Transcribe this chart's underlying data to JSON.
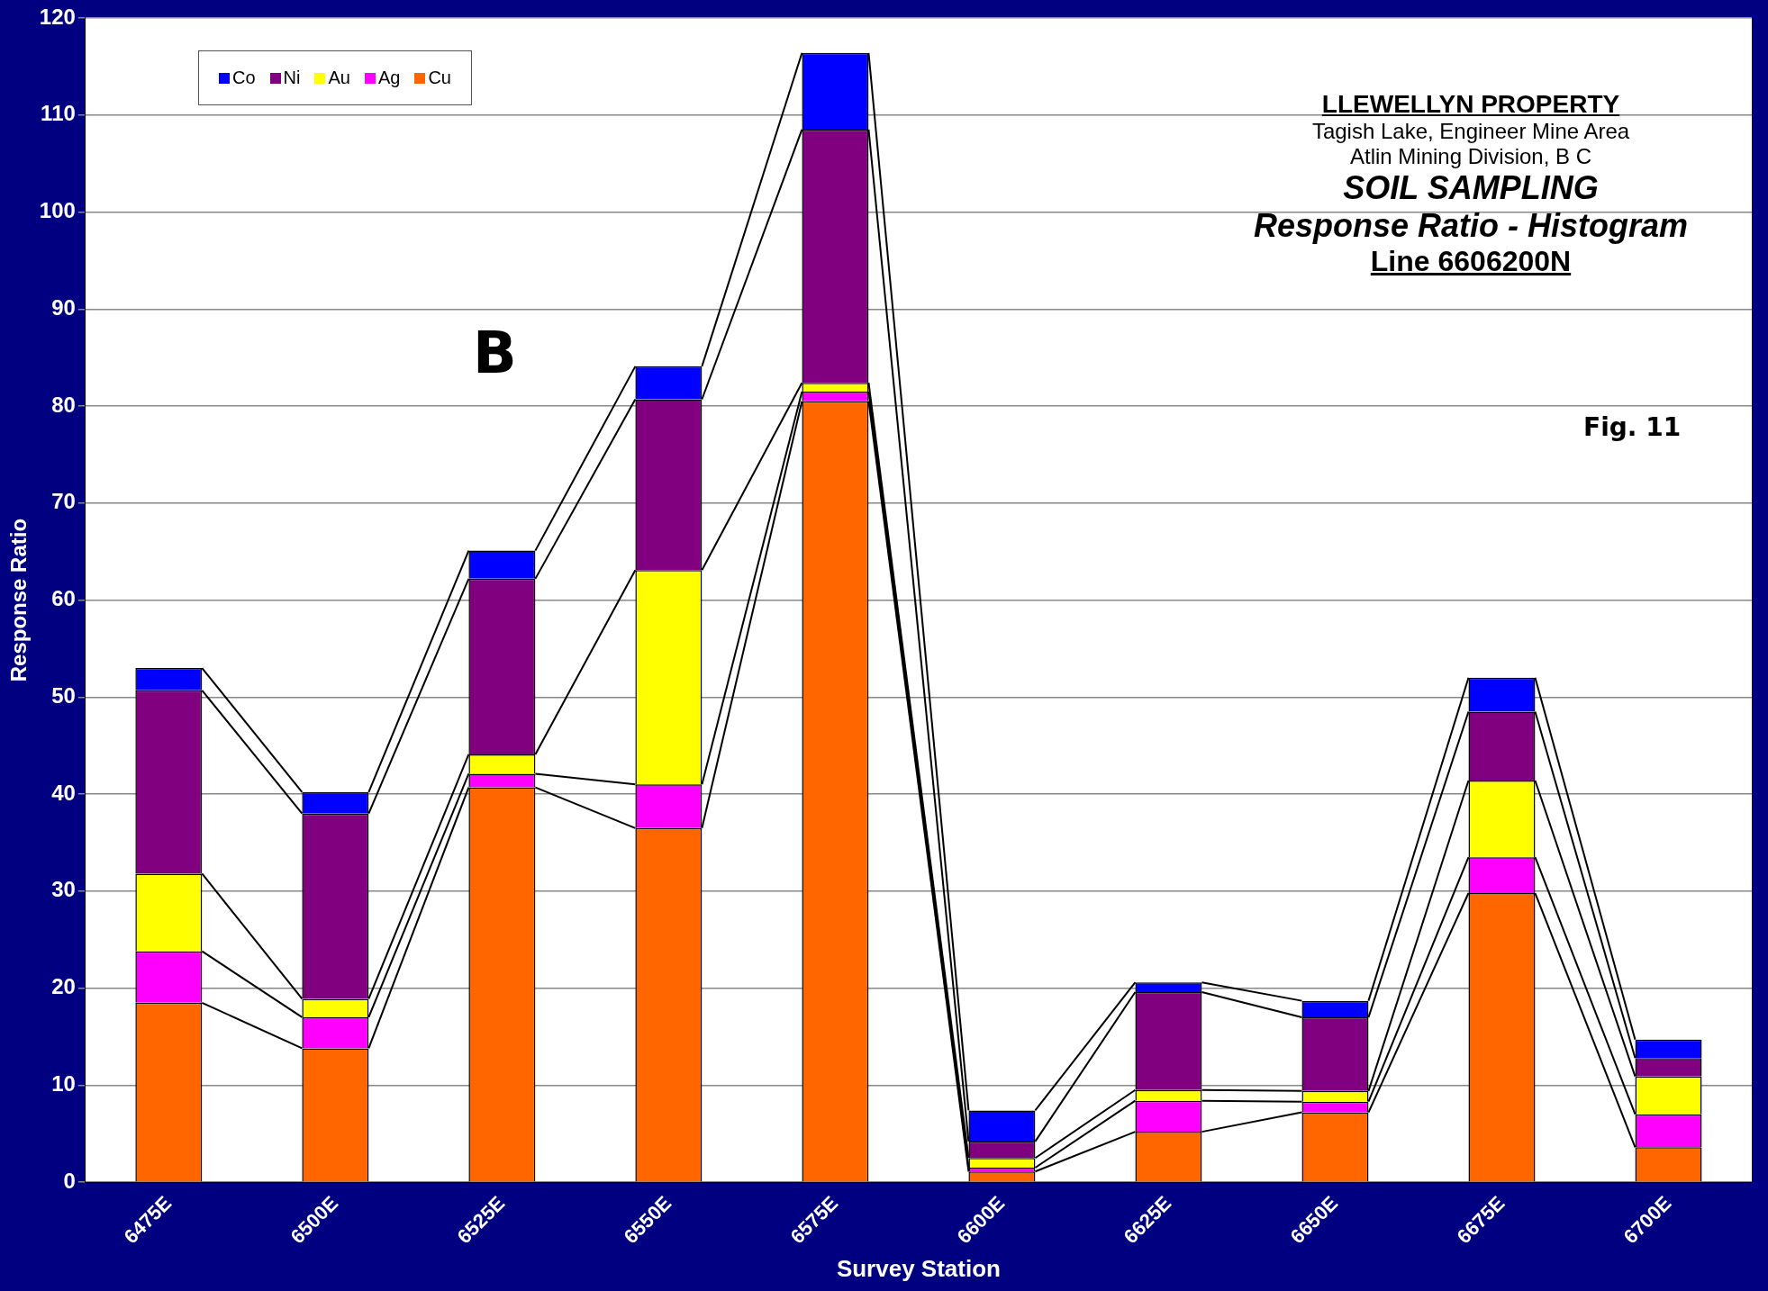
{
  "chart_data": {
    "type": "bar",
    "stacked": true,
    "title": "LLEWELLYN PROPERTY",
    "subtitle": "Tagish Lake, Engineer Mine Area",
    "xlabel": "Survey Station",
    "ylabel": "Response Ratio",
    "annotations": [
      "Atlin Mining Division, B C",
      "SOIL SAMPLING",
      "Response Ratio - Histogram",
      "Line 6606200N",
      "B",
      "Fig. 11"
    ],
    "categories": [
      "6475E",
      "6500E",
      "6525E",
      "6550E",
      "6575E",
      "6600E",
      "6625E",
      "6650E",
      "6675E",
      "6700E"
    ],
    "series": [
      {
        "name": "Cu",
        "color": "#ff6600",
        "values": [
          18.5,
          13.8,
          40.7,
          36.5,
          80.5,
          1.1,
          5.2,
          7.2,
          29.8,
          3.6
        ]
      },
      {
        "name": "Ag",
        "color": "#ff00ff",
        "values": [
          5.3,
          3.2,
          1.4,
          4.5,
          1.0,
          0.4,
          3.2,
          1.1,
          3.7,
          3.4
        ]
      },
      {
        "name": "Au",
        "color": "#ffff00",
        "values": [
          8.0,
          1.9,
          2.0,
          22.1,
          0.9,
          1.0,
          1.1,
          1.1,
          7.9,
          3.9
        ]
      },
      {
        "name": "Ni",
        "color": "#800080",
        "values": [
          18.9,
          19.1,
          18.1,
          17.6,
          26.1,
          1.7,
          10.1,
          7.6,
          7.1,
          1.9
        ]
      },
      {
        "name": "Co",
        "color": "#0000ff",
        "values": [
          2.3,
          2.2,
          2.9,
          3.4,
          7.9,
          3.2,
          1.0,
          1.7,
          3.5,
          1.9
        ]
      }
    ],
    "ylim": [
      0,
      120
    ],
    "yticks": [
      0,
      10,
      20,
      30,
      40,
      50,
      60,
      70,
      80,
      90,
      100,
      110,
      120
    ],
    "grid": "y",
    "legend": "top left"
  }
}
